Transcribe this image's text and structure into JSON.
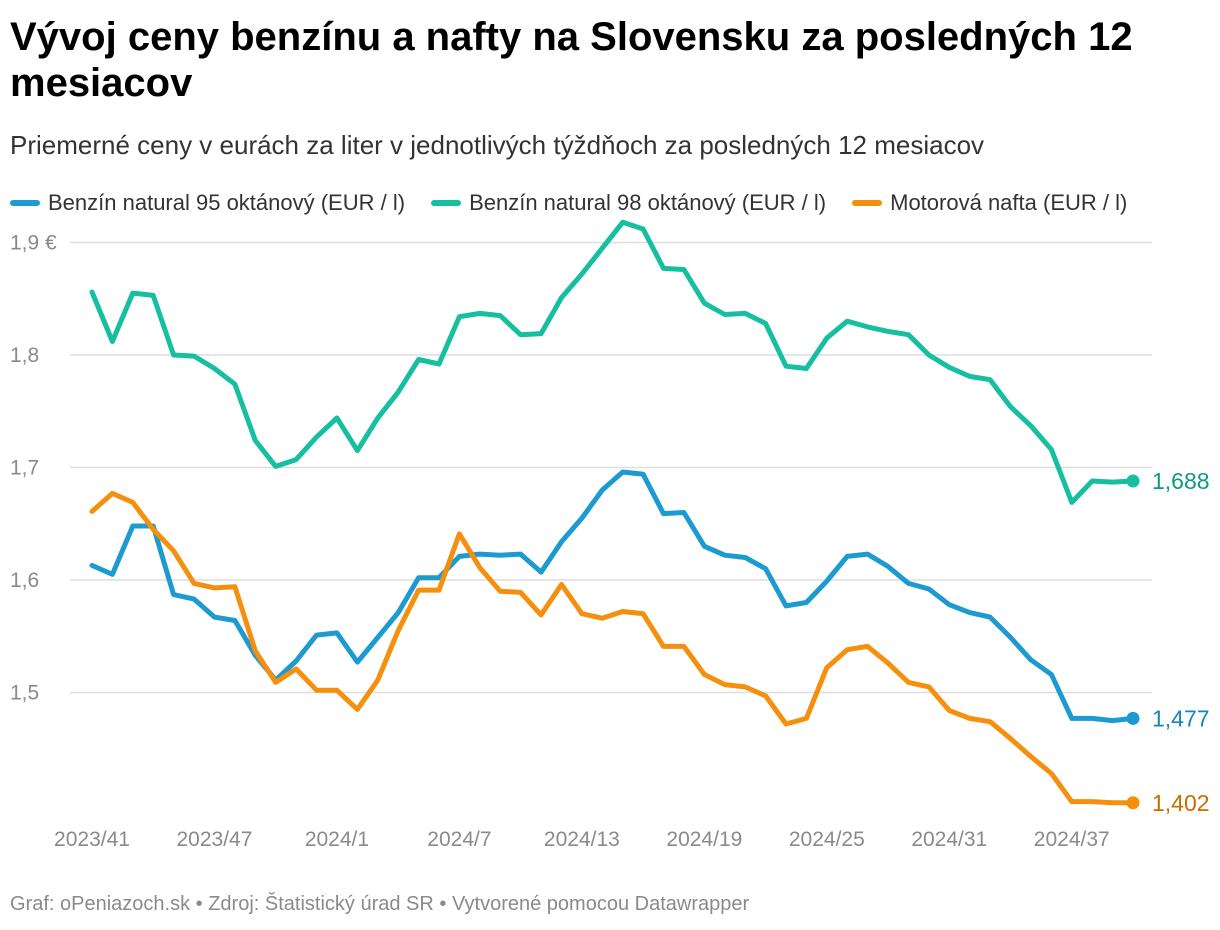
{
  "header": {
    "title": "Vývoj ceny benzínu a nafty na Slovensku za posledných 12 mesiacov",
    "subtitle": "Priemerné ceny v eurách za liter v jednotlivých týždňoch za posledných 12 mesiacov"
  },
  "footer": {
    "credit": "Graf: oPeniazoch.sk • Zdroj: Štatistický úrad SR • Vytvorené pomocou Datawrapper"
  },
  "chart_data": {
    "type": "line",
    "title": "Vývoj ceny benzínu a nafty na Slovensku za posledných 12 mesiacov",
    "subtitle": "Priemerné ceny v eurách za liter v jednotlivých týždňoch za posledných 12 mesiacov",
    "xlabel": "",
    "ylabel": "",
    "x_tick_labels": [
      {
        "index": 0,
        "label": "2023/41"
      },
      {
        "index": 6,
        "label": "2023/47"
      },
      {
        "index": 12,
        "label": "2024/1"
      },
      {
        "index": 18,
        "label": "2024/7"
      },
      {
        "index": 24,
        "label": "2024/13"
      },
      {
        "index": 30,
        "label": "2024/19"
      },
      {
        "index": 36,
        "label": "2024/25"
      },
      {
        "index": 42,
        "label": "2024/31"
      },
      {
        "index": 48,
        "label": "2024/37"
      }
    ],
    "y_ticks": [
      {
        "value": 1.5,
        "label": "1,5"
      },
      {
        "value": 1.6,
        "label": "1,6"
      },
      {
        "value": 1.7,
        "label": "1,7"
      },
      {
        "value": 1.8,
        "label": "1,8"
      },
      {
        "value": 1.9,
        "label": "1,9 €"
      }
    ],
    "ylim": [
      1.4,
      1.92
    ],
    "x_count": 52,
    "grid": true,
    "legend_position": "top-left",
    "series": [
      {
        "name": "Benzín natural 95 oktánový (EUR / l)",
        "color": "#1d9bd1",
        "end_label": "1,477",
        "values": [
          1.613,
          1.605,
          1.648,
          1.648,
          1.587,
          1.583,
          1.567,
          1.564,
          1.533,
          1.511,
          1.528,
          1.551,
          1.553,
          1.527,
          1.549,
          1.571,
          1.602,
          1.602,
          1.621,
          1.623,
          1.622,
          1.623,
          1.607,
          1.634,
          1.655,
          1.68,
          1.696,
          1.694,
          1.659,
          1.66,
          1.63,
          1.622,
          1.62,
          1.61,
          1.577,
          1.58,
          1.599,
          1.621,
          1.623,
          1.612,
          1.597,
          1.592,
          1.578,
          1.571,
          1.567,
          1.549,
          1.529,
          1.516,
          1.477,
          1.477,
          1.475,
          1.477
        ]
      },
      {
        "name": "Benzín natural 98 oktánový (EUR / l)",
        "color": "#15bfa0",
        "end_label": "1,688",
        "values": [
          1.856,
          1.812,
          1.855,
          1.853,
          1.8,
          1.799,
          1.788,
          1.774,
          1.724,
          1.701,
          1.707,
          1.727,
          1.744,
          1.715,
          1.744,
          1.767,
          1.796,
          1.792,
          1.834,
          1.837,
          1.835,
          1.818,
          1.819,
          1.851,
          1.872,
          1.895,
          1.918,
          1.912,
          1.877,
          1.876,
          1.846,
          1.836,
          1.837,
          1.828,
          1.79,
          1.788,
          1.815,
          1.83,
          1.825,
          1.821,
          1.818,
          1.8,
          1.789,
          1.781,
          1.778,
          1.754,
          1.737,
          1.716,
          1.669,
          1.688,
          1.687,
          1.688
        ]
      },
      {
        "name": "Motorová nafta (EUR / l)",
        "color": "#f5900f",
        "end_label": "1,402",
        "values": [
          1.661,
          1.677,
          1.669,
          1.645,
          1.626,
          1.597,
          1.593,
          1.594,
          1.537,
          1.509,
          1.521,
          1.502,
          1.502,
          1.485,
          1.511,
          1.555,
          1.591,
          1.591,
          1.641,
          1.611,
          1.59,
          1.589,
          1.569,
          1.596,
          1.57,
          1.566,
          1.572,
          1.57,
          1.541,
          1.541,
          1.516,
          1.507,
          1.505,
          1.497,
          1.472,
          1.477,
          1.522,
          1.538,
          1.541,
          1.526,
          1.509,
          1.505,
          1.484,
          1.477,
          1.474,
          1.459,
          1.443,
          1.428,
          1.403,
          1.403,
          1.402,
          1.402
        ]
      }
    ]
  }
}
